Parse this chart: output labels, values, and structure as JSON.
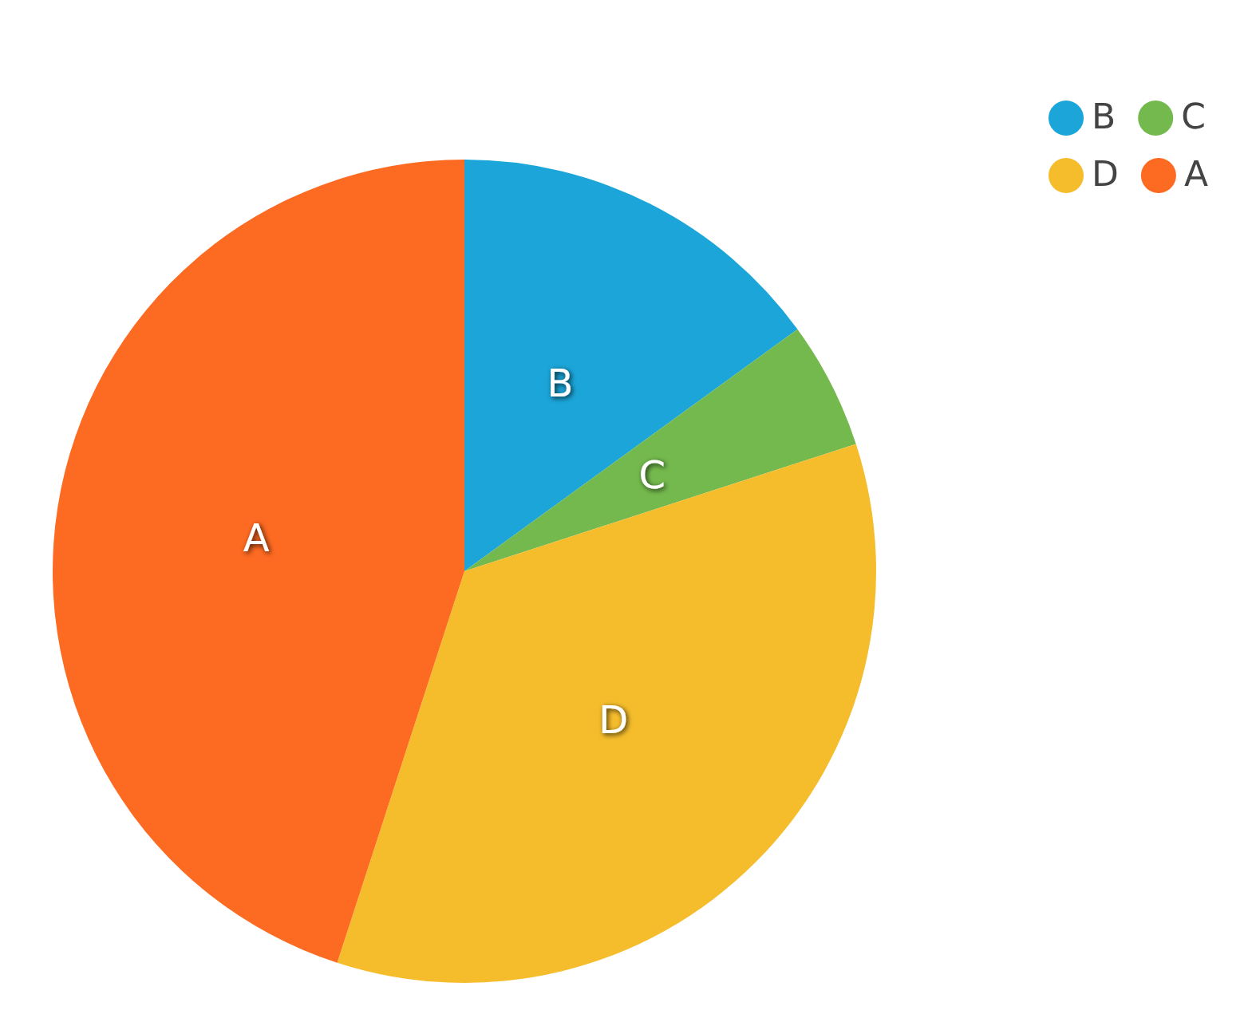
{
  "chart_data": {
    "type": "pie",
    "categories": [
      "B",
      "C",
      "D",
      "A"
    ],
    "values": [
      15,
      5,
      35,
      45
    ],
    "colors": [
      "#1ba5d8",
      "#74b94d",
      "#f5bd2c",
      "#fd6a22"
    ],
    "legend": "top right"
  }
}
